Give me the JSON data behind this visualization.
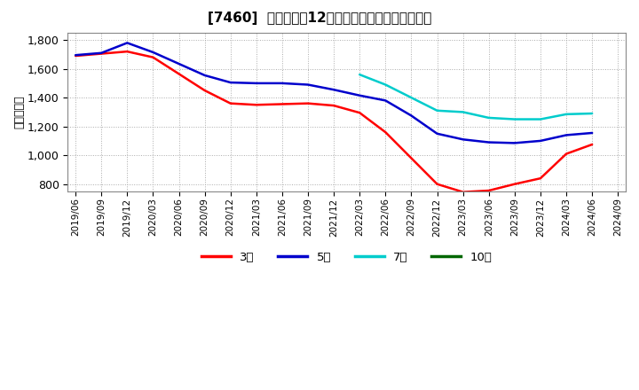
{
  "title": "[7460]  当期純利益12か月移動合計の平均値の推移",
  "ylabel": "（百万円）",
  "background_color": "#ffffff",
  "plot_background": "#ffffff",
  "grid_color": "#aaaaaa",
  "ylim": [
    750,
    1850
  ],
  "yticks": [
    800,
    1000,
    1200,
    1400,
    1600,
    1800
  ],
  "ytick_labels": [
    "800",
    "1,000",
    "1,200",
    "1,400",
    "1,600",
    "1,800"
  ],
  "x_labels": [
    "2019/06",
    "2019/09",
    "2019/12",
    "2020/03",
    "2020/06",
    "2020/09",
    "2020/12",
    "2021/03",
    "2021/06",
    "2021/09",
    "2021/12",
    "2022/03",
    "2022/06",
    "2022/09",
    "2022/12",
    "2023/03",
    "2023/06",
    "2023/09",
    "2023/12",
    "2024/03",
    "2024/06",
    "2024/09"
  ],
  "series": {
    "3年": {
      "color": "#ff0000",
      "data_x": [
        "2019/06",
        "2019/09",
        "2019/12",
        "2020/03",
        "2020/06",
        "2020/09",
        "2020/12",
        "2021/03",
        "2021/06",
        "2021/09",
        "2021/12",
        "2022/03",
        "2022/06",
        "2022/09",
        "2022/12",
        "2023/03",
        "2023/06",
        "2023/09",
        "2023/12",
        "2024/03",
        "2024/06"
      ],
      "data_y": [
        1690,
        1705,
        1720,
        1680,
        1565,
        1450,
        1360,
        1350,
        1355,
        1360,
        1345,
        1295,
        1160,
        980,
        800,
        745,
        755,
        800,
        840,
        1010,
        1075
      ]
    },
    "5年": {
      "color": "#0000cc",
      "data_x": [
        "2019/06",
        "2019/09",
        "2019/12",
        "2020/03",
        "2020/06",
        "2020/09",
        "2020/12",
        "2021/03",
        "2021/06",
        "2021/09",
        "2021/12",
        "2022/03",
        "2022/06",
        "2022/09",
        "2022/12",
        "2023/03",
        "2023/06",
        "2023/09",
        "2023/12",
        "2024/03",
        "2024/06"
      ],
      "data_y": [
        1695,
        1710,
        1780,
        1715,
        1635,
        1555,
        1505,
        1500,
        1500,
        1490,
        1455,
        1415,
        1380,
        1275,
        1150,
        1110,
        1090,
        1085,
        1100,
        1140,
        1155
      ]
    },
    "7年": {
      "color": "#00cccc",
      "data_x": [
        "2022/03",
        "2022/06",
        "2022/09",
        "2022/12",
        "2023/03",
        "2023/06",
        "2023/09",
        "2023/12",
        "2024/03",
        "2024/06"
      ],
      "data_y": [
        1560,
        1490,
        1400,
        1310,
        1300,
        1260,
        1250,
        1250,
        1285,
        1290
      ]
    },
    "10年": {
      "color": "#006600",
      "data_x": [],
      "data_y": []
    }
  },
  "legend_labels": [
    "3年",
    "5年",
    "7年",
    "10年"
  ],
  "legend_colors": [
    "#ff0000",
    "#0000cc",
    "#00cccc",
    "#006600"
  ]
}
